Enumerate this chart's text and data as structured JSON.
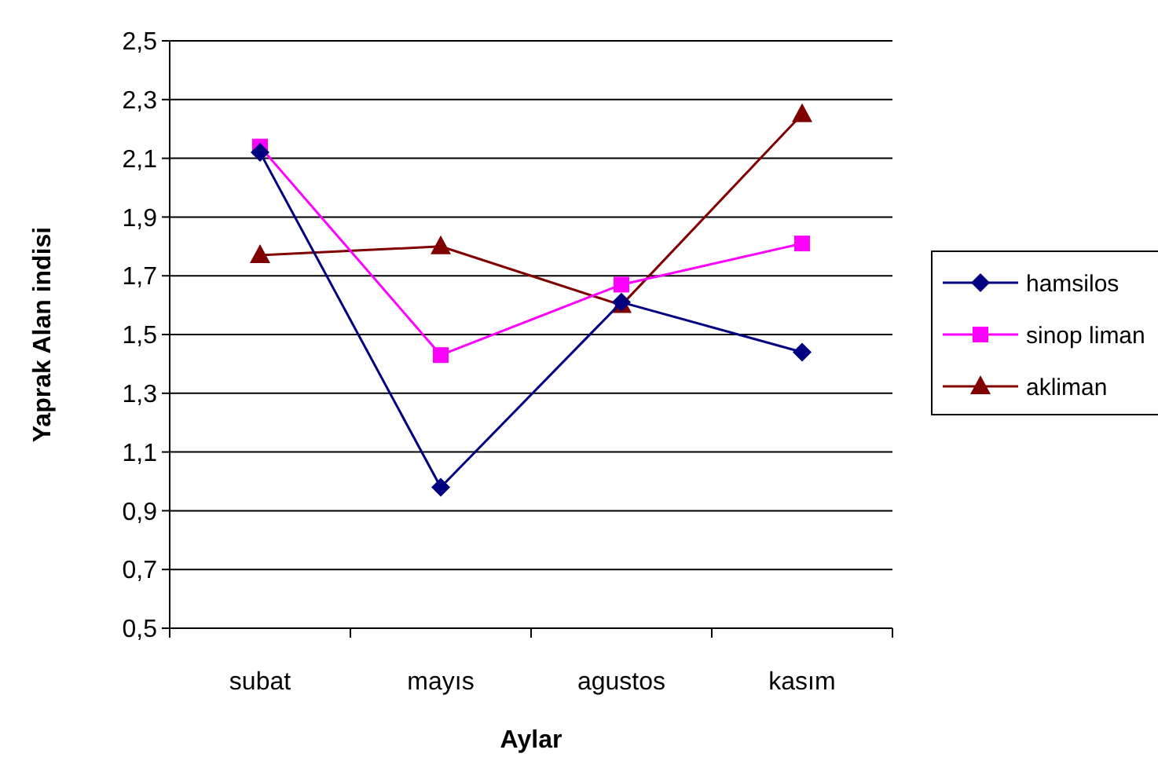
{
  "chart_data": {
    "type": "line",
    "xlabel": "Aylar",
    "ylabel": "Yaprak Alan indisi",
    "categories": [
      "subat",
      "mayıs",
      "agustos",
      "kasım"
    ],
    "series": [
      {
        "name": "hamsilos",
        "color": "#000080",
        "marker": "diamond",
        "values": [
          2.12,
          0.98,
          1.61,
          1.44
        ]
      },
      {
        "name": "sinop liman",
        "color": "#ff00ff",
        "marker": "square",
        "values": [
          2.14,
          1.43,
          1.67,
          1.81
        ]
      },
      {
        "name": "akliman",
        "color": "#800000",
        "marker": "triangle",
        "values": [
          1.77,
          1.8,
          1.6,
          2.25
        ]
      }
    ],
    "ylim": [
      0.5,
      2.5
    ],
    "yticks": [
      {
        "value": 0.5,
        "label": "0,5"
      },
      {
        "value": 0.7,
        "label": "0,7"
      },
      {
        "value": 0.9,
        "label": "0,9"
      },
      {
        "value": 1.1,
        "label": "1,1"
      },
      {
        "value": 1.3,
        "label": "1,3"
      },
      {
        "value": 1.5,
        "label": "1,5"
      },
      {
        "value": 1.7,
        "label": "1,7"
      },
      {
        "value": 1.9,
        "label": "1,9"
      },
      {
        "value": 2.1,
        "label": "2,1"
      },
      {
        "value": 2.3,
        "label": "2,3"
      },
      {
        "value": 2.5,
        "label": "2,5"
      }
    ],
    "grid": "y",
    "legend": "right"
  }
}
